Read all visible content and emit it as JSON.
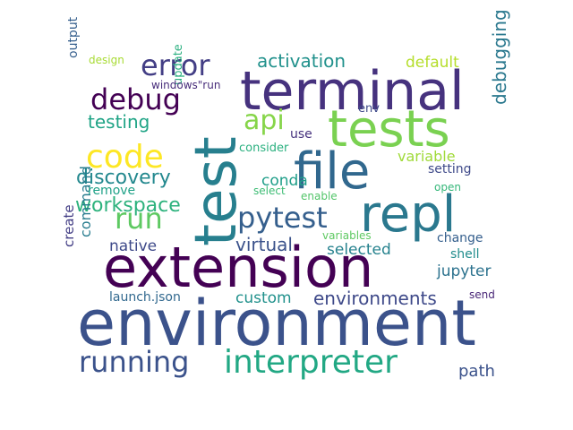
{
  "words": [
    {
      "text": "environment",
      "color": "#3b528b"
    },
    {
      "text": "extension",
      "color": "#440154"
    },
    {
      "text": "terminal",
      "color": "#46327e"
    },
    {
      "text": "test",
      "color": "#277f8e"
    },
    {
      "text": "tests",
      "color": "#7ad151"
    },
    {
      "text": "file",
      "color": "#31688e"
    },
    {
      "text": "repl",
      "color": "#2a788e"
    },
    {
      "text": "interpreter",
      "color": "#22a884"
    },
    {
      "text": "pytest",
      "color": "#355f8d"
    },
    {
      "text": "running",
      "color": "#3b528b"
    },
    {
      "text": "code",
      "color": "#fde725"
    },
    {
      "text": "error",
      "color": "#433e85"
    },
    {
      "text": "debug",
      "color": "#440154"
    },
    {
      "text": "api",
      "color": "#86d549"
    },
    {
      "text": "run",
      "color": "#5ec962"
    },
    {
      "text": "workspace",
      "color": "#2db27d"
    },
    {
      "text": "discovery",
      "color": "#23888e"
    },
    {
      "text": "activation",
      "color": "#21918c"
    },
    {
      "text": "testing",
      "color": "#20a486"
    },
    {
      "text": "environments",
      "color": "#3e4989"
    },
    {
      "text": "virtual",
      "color": "#3b528b"
    },
    {
      "text": "debugging",
      "color": "#2a788e"
    },
    {
      "text": "conda",
      "color": "#1f9e89"
    },
    {
      "text": "native",
      "color": "#3e4989"
    },
    {
      "text": "selected",
      "color": "#26828e"
    },
    {
      "text": "custom",
      "color": "#21918c"
    },
    {
      "text": "jupyter",
      "color": "#2c728e"
    },
    {
      "text": "default",
      "color": "#b5de2b"
    },
    {
      "text": "variable",
      "color": "#a0da39"
    },
    {
      "text": "command",
      "color": "#287c8e"
    },
    {
      "text": "create",
      "color": "#433e85"
    },
    {
      "text": "path",
      "color": "#3b528b"
    },
    {
      "text": "output",
      "color": "#355f8d"
    },
    {
      "text": "launch.json",
      "color": "#31688e"
    },
    {
      "text": "remove",
      "color": "#1fa187"
    },
    {
      "text": "update",
      "color": "#29af7f"
    },
    {
      "text": "setting",
      "color": "#3e4989"
    },
    {
      "text": "change",
      "color": "#355f8d"
    },
    {
      "text": "shell",
      "color": "#228d8d"
    },
    {
      "text": "use",
      "color": "#46327e"
    },
    {
      "text": "env",
      "color": "#3e4989"
    },
    {
      "text": "consider",
      "color": "#2ab07f"
    },
    {
      "text": "windows\"run",
      "color": "#472c7a"
    },
    {
      "text": "design",
      "color": "#a8db34"
    },
    {
      "text": "send",
      "color": "#482576"
    },
    {
      "text": "open",
      "color": "#35b779"
    },
    {
      "text": "select",
      "color": "#3dbc74"
    },
    {
      "text": "enable",
      "color": "#52c569"
    },
    {
      "text": "variables",
      "color": "#5ec962"
    }
  ]
}
